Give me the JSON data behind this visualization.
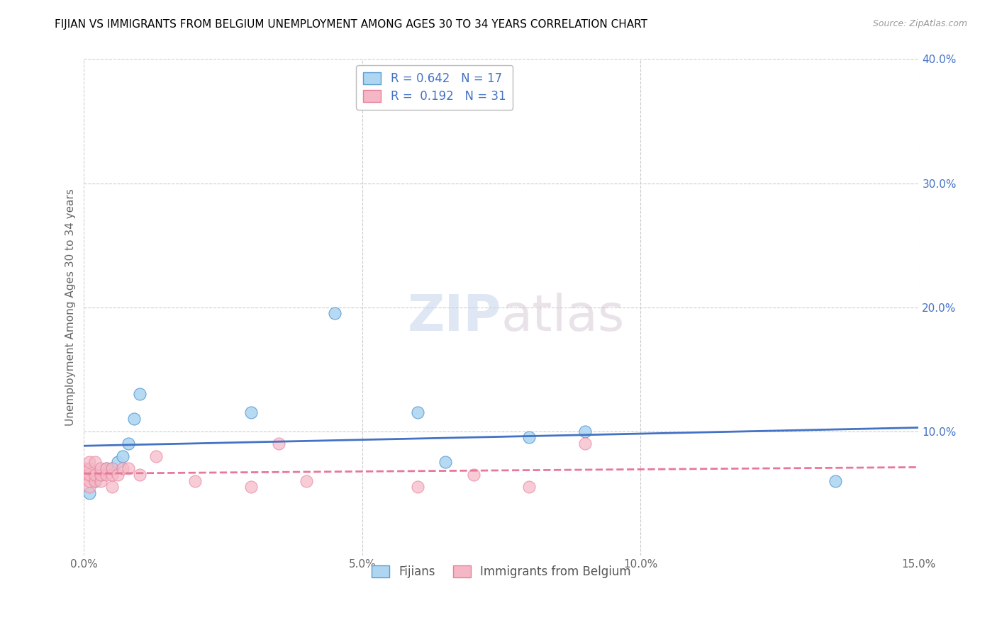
{
  "title": "FIJIAN VS IMMIGRANTS FROM BELGIUM UNEMPLOYMENT AMONG AGES 30 TO 34 YEARS CORRELATION CHART",
  "source": "Source: ZipAtlas.com",
  "ylabel": "Unemployment Among Ages 30 to 34 years",
  "xlim": [
    0.0,
    0.15
  ],
  "ylim": [
    0.0,
    0.4
  ],
  "xticks": [
    0.0,
    0.05,
    0.1,
    0.15
  ],
  "xtick_labels": [
    "0.0%",
    "5.0%",
    "10.0%",
    "15.0%"
  ],
  "yticks": [
    0.1,
    0.2,
    0.3,
    0.4
  ],
  "ytick_labels": [
    "10.0%",
    "20.0%",
    "30.0%",
    "40.0%"
  ],
  "fijians_x": [
    0.001,
    0.002,
    0.003,
    0.004,
    0.005,
    0.006,
    0.007,
    0.008,
    0.009,
    0.01,
    0.03,
    0.045,
    0.06,
    0.065,
    0.08,
    0.09,
    0.135
  ],
  "fijians_y": [
    0.05,
    0.06,
    0.065,
    0.07,
    0.07,
    0.075,
    0.08,
    0.09,
    0.11,
    0.13,
    0.115,
    0.195,
    0.115,
    0.075,
    0.095,
    0.1,
    0.06
  ],
  "belgium_x": [
    0.0,
    0.0,
    0.001,
    0.001,
    0.001,
    0.001,
    0.001,
    0.002,
    0.002,
    0.002,
    0.003,
    0.003,
    0.003,
    0.004,
    0.004,
    0.005,
    0.005,
    0.005,
    0.006,
    0.007,
    0.008,
    0.01,
    0.013,
    0.02,
    0.03,
    0.035,
    0.04,
    0.06,
    0.07,
    0.08,
    0.09
  ],
  "belgium_y": [
    0.065,
    0.07,
    0.055,
    0.06,
    0.065,
    0.07,
    0.075,
    0.06,
    0.065,
    0.075,
    0.06,
    0.065,
    0.07,
    0.065,
    0.07,
    0.055,
    0.065,
    0.07,
    0.065,
    0.07,
    0.07,
    0.065,
    0.08,
    0.06,
    0.055,
    0.09,
    0.06,
    0.055,
    0.065,
    0.055,
    0.09
  ],
  "fijian_color": "#AED6F1",
  "belgium_color": "#F5B7C5",
  "fijian_edge_color": "#5B9BD5",
  "belgium_edge_color": "#E87F9A",
  "fijian_line_color": "#4472C4",
  "belgium_line_color": "#E8789A",
  "R_fijian": 0.642,
  "N_fijian": 17,
  "R_belgium": 0.192,
  "N_belgium": 31,
  "legend_label_fijian": "Fijians",
  "legend_label_belgium": "Immigrants from Belgium",
  "title_fontsize": 11,
  "axis_label_fontsize": 11,
  "tick_fontsize": 11,
  "background_color": "#FFFFFF",
  "grid_color": "#CCCCCC",
  "ytick_color": "#4472C4",
  "xtick_color": "#666666"
}
